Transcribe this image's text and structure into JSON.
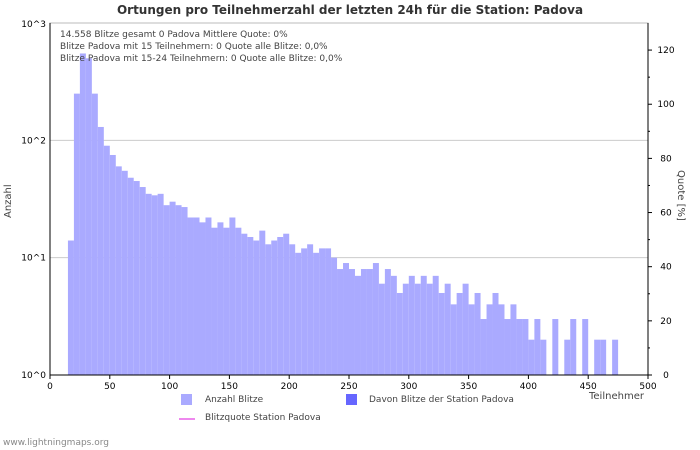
{
  "title": "Ortungen pro Teilnehmerzahl der letzten 24h für die Station: Padova",
  "info": [
    "14.558 Blitze gesamt      0 Padova      Mittlere Quote: 0%",
    "Blitze Padova mit 15 Teilnehmern: 0      Quote alle Blitze: 0,0%",
    "Blitze Padova mit 15-24 Teilnehmern: 0      Quote alle Blitze: 0,0%"
  ],
  "legend": {
    "anzahl": "Anzahl Blitze",
    "davon": "Davon Blitze der Station Padova",
    "quote": "Blitzquote Station Padova"
  },
  "footer": "www.lightningmaps.org",
  "colors": {
    "anzahl": "#aaaaff",
    "davon": "#6666ff",
    "quote": "#ee88ee"
  },
  "chart_data": {
    "type": "bar",
    "title": "Ortungen pro Teilnehmerzahl der letzten 24h für die Station: Padova",
    "xlabel": "Teilnehmer",
    "ylabel": "Anzahl",
    "y2label": "Quote [%]",
    "xlim": [
      0,
      500
    ],
    "ylim_log": [
      1,
      1000
    ],
    "y2lim": [
      0,
      130
    ],
    "xticks": [
      "0",
      "50",
      "100",
      "150",
      "200",
      "250",
      "300",
      "350",
      "400",
      "450",
      "500"
    ],
    "yticks": [
      "10^0",
      "10^1",
      "10^2",
      "10^3"
    ],
    "y2ticks": [
      "0",
      "20",
      "40",
      "60",
      "80",
      "100",
      "120"
    ],
    "bin_width": 5,
    "x": [
      0,
      5,
      10,
      15,
      20,
      25,
      30,
      35,
      40,
      45,
      50,
      55,
      60,
      65,
      70,
      75,
      80,
      85,
      90,
      95,
      100,
      105,
      110,
      115,
      120,
      125,
      130,
      135,
      140,
      145,
      150,
      155,
      160,
      165,
      170,
      175,
      180,
      185,
      190,
      195,
      200,
      205,
      210,
      215,
      220,
      225,
      230,
      235,
      240,
      245,
      250,
      255,
      260,
      265,
      270,
      275,
      280,
      285,
      290,
      295,
      300,
      305,
      310,
      315,
      320,
      325,
      330,
      335,
      340,
      345,
      350,
      355,
      360,
      365,
      370,
      375,
      380,
      385,
      390,
      395,
      400,
      405,
      410,
      415,
      420,
      425,
      430,
      435,
      440,
      445,
      450,
      455,
      460,
      465,
      470,
      475,
      480,
      485,
      490,
      495
    ],
    "series": [
      {
        "name": "Anzahl Blitze",
        "values": [
          1,
          1,
          1,
          14,
          250,
          550,
          500,
          250,
          130,
          90,
          75,
          60,
          55,
          48,
          45,
          40,
          35,
          34,
          35,
          28,
          30,
          28,
          27,
          22,
          22,
          20,
          22,
          18,
          20,
          18,
          22,
          18,
          16,
          15,
          14,
          17,
          13,
          14,
          15,
          16,
          13,
          11,
          12,
          13,
          11,
          12,
          12,
          10,
          8,
          9,
          8,
          7,
          8,
          8,
          9,
          6,
          8,
          7,
          5,
          6,
          7,
          6,
          7,
          6,
          7,
          5,
          6,
          4,
          5,
          6,
          4,
          5,
          3,
          4,
          5,
          4,
          3,
          4,
          3,
          3,
          2,
          3,
          2,
          1,
          3,
          1,
          2,
          3,
          1,
          3,
          1,
          2,
          2,
          1,
          2,
          1,
          1,
          1,
          1,
          1
        ]
      },
      {
        "name": "Davon Blitze der Station Padova",
        "values": [
          0,
          0,
          0,
          0,
          0,
          0,
          0,
          0,
          0,
          0,
          0,
          0,
          0,
          0,
          0,
          0,
          0,
          0,
          0,
          0,
          0,
          0,
          0,
          0,
          0,
          0,
          0,
          0,
          0,
          0,
          0,
          0,
          0,
          0,
          0,
          0,
          0,
          0,
          0,
          0,
          0,
          0,
          0,
          0,
          0,
          0,
          0,
          0,
          0,
          0,
          0,
          0,
          0,
          0,
          0,
          0,
          0,
          0,
          0,
          0,
          0,
          0,
          0,
          0,
          0,
          0,
          0,
          0,
          0,
          0,
          0,
          0,
          0,
          0,
          0,
          0,
          0,
          0,
          0,
          0,
          0,
          0,
          0,
          0,
          0,
          0,
          0,
          0,
          0,
          0,
          0,
          0,
          0,
          0,
          0,
          0,
          0,
          0,
          0,
          0
        ]
      }
    ],
    "grid": true,
    "legend": "bottom"
  }
}
